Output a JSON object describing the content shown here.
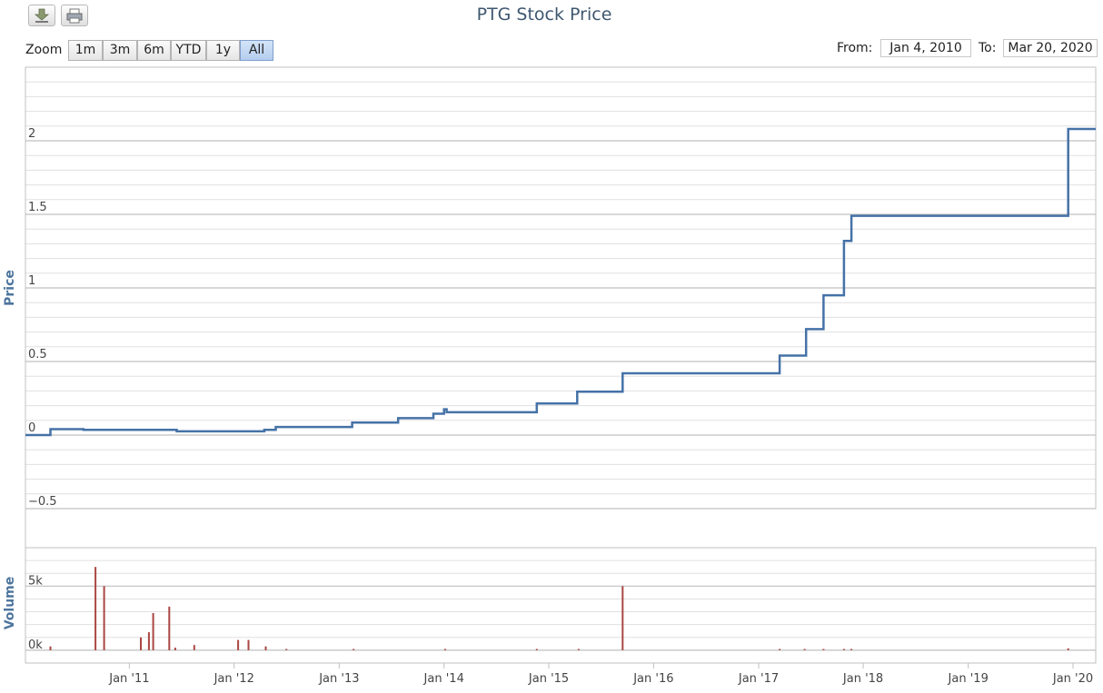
{
  "toolbar": {
    "download_icon": "download-icon",
    "print_icon": "print-icon"
  },
  "title": "PTG Stock Price",
  "range_selector": {
    "zoom_label": "Zoom",
    "buttons": [
      "1m",
      "3m",
      "6m",
      "YTD",
      "1y",
      "All"
    ],
    "selected": "All",
    "from_label": "From:",
    "from_value": "Jan 4, 2010",
    "to_label": "To:",
    "to_value": "Mar 20, 2020"
  },
  "colors": {
    "price_line": "#4572a7",
    "volume_bar": "#aa4643",
    "title": "#3e576f",
    "grid_major": "#c0c0c0",
    "grid_minor": "#e0e0e0"
  },
  "chart_data": [
    {
      "type": "line",
      "ylabel": "Price",
      "ylim": [
        -0.5,
        2.5
      ],
      "y_ticks": [
        -0.5,
        0,
        0.5,
        1,
        1.5,
        2
      ],
      "y_tick_labels": [
        "−0.5",
        "0",
        "0.5",
        "1",
        "1.5",
        "2"
      ],
      "x_range": [
        "2010-01-04",
        "2020-03-20"
      ],
      "x_ticks": [
        {
          "date": "2011-01-01",
          "label": "Jan '11"
        },
        {
          "date": "2012-01-01",
          "label": "Jan '12"
        },
        {
          "date": "2013-01-01",
          "label": "Jan '13"
        },
        {
          "date": "2014-01-01",
          "label": "Jan '14"
        },
        {
          "date": "2015-01-01",
          "label": "Jan '15"
        },
        {
          "date": "2016-01-01",
          "label": "Jan '16"
        },
        {
          "date": "2017-01-01",
          "label": "Jan '17"
        },
        {
          "date": "2017-12-31",
          "label": "Jan '18"
        },
        {
          "date": "2019-01-01",
          "label": "Jan '19"
        },
        {
          "date": "2020-01-01",
          "label": "Jan '20"
        }
      ],
      "step": true,
      "series": [
        {
          "points": [
            [
              "2010-01-04",
              0.0
            ],
            [
              "2010-04-01",
              0.04
            ],
            [
              "2010-07-25",
              0.035
            ],
            [
              "2011-06-15",
              0.025
            ],
            [
              "2012-04-15",
              0.035
            ],
            [
              "2012-05-25",
              0.055
            ],
            [
              "2013-02-15",
              0.085
            ],
            [
              "2013-07-25",
              0.115
            ],
            [
              "2013-11-25",
              0.145
            ],
            [
              "2014-01-01",
              0.175
            ],
            [
              "2014-01-10",
              0.155
            ],
            [
              "2014-11-20",
              0.215
            ],
            [
              "2015-04-10",
              0.295
            ],
            [
              "2015-09-15",
              0.42
            ],
            [
              "2017-03-15",
              0.54
            ],
            [
              "2017-06-15",
              0.72
            ],
            [
              "2017-08-15",
              0.95
            ],
            [
              "2017-10-25",
              1.32
            ],
            [
              "2017-11-20",
              1.49
            ],
            [
              "2019-12-15",
              2.08
            ],
            [
              "2020-03-20",
              2.08
            ]
          ]
        }
      ]
    },
    {
      "type": "bar",
      "ylabel": "Volume",
      "ylim": [
        -1000,
        8000
      ],
      "y_ticks": [
        0,
        5000
      ],
      "y_tick_labels": [
        "0k",
        "5k"
      ],
      "x_range": [
        "2010-01-04",
        "2020-03-20"
      ],
      "series": [
        {
          "points": [
            [
              "2010-04-01",
              300
            ],
            [
              "2010-09-05",
              6500
            ],
            [
              "2010-10-05",
              5000
            ],
            [
              "2011-02-10",
              1000
            ],
            [
              "2011-03-10",
              1400
            ],
            [
              "2011-03-25",
              2900
            ],
            [
              "2011-05-20",
              3400
            ],
            [
              "2011-06-10",
              200
            ],
            [
              "2011-08-15",
              400
            ],
            [
              "2012-01-15",
              800
            ],
            [
              "2012-02-20",
              800
            ],
            [
              "2012-04-20",
              300
            ],
            [
              "2012-07-01",
              100
            ],
            [
              "2013-02-20",
              100
            ],
            [
              "2014-01-05",
              100
            ],
            [
              "2014-11-20",
              100
            ],
            [
              "2015-04-15",
              100
            ],
            [
              "2015-09-15",
              5000
            ],
            [
              "2017-03-15",
              100
            ],
            [
              "2017-06-10",
              100
            ],
            [
              "2017-08-15",
              100
            ],
            [
              "2017-10-25",
              100
            ],
            [
              "2017-11-20",
              100
            ],
            [
              "2019-12-15",
              150
            ]
          ]
        }
      ]
    }
  ]
}
